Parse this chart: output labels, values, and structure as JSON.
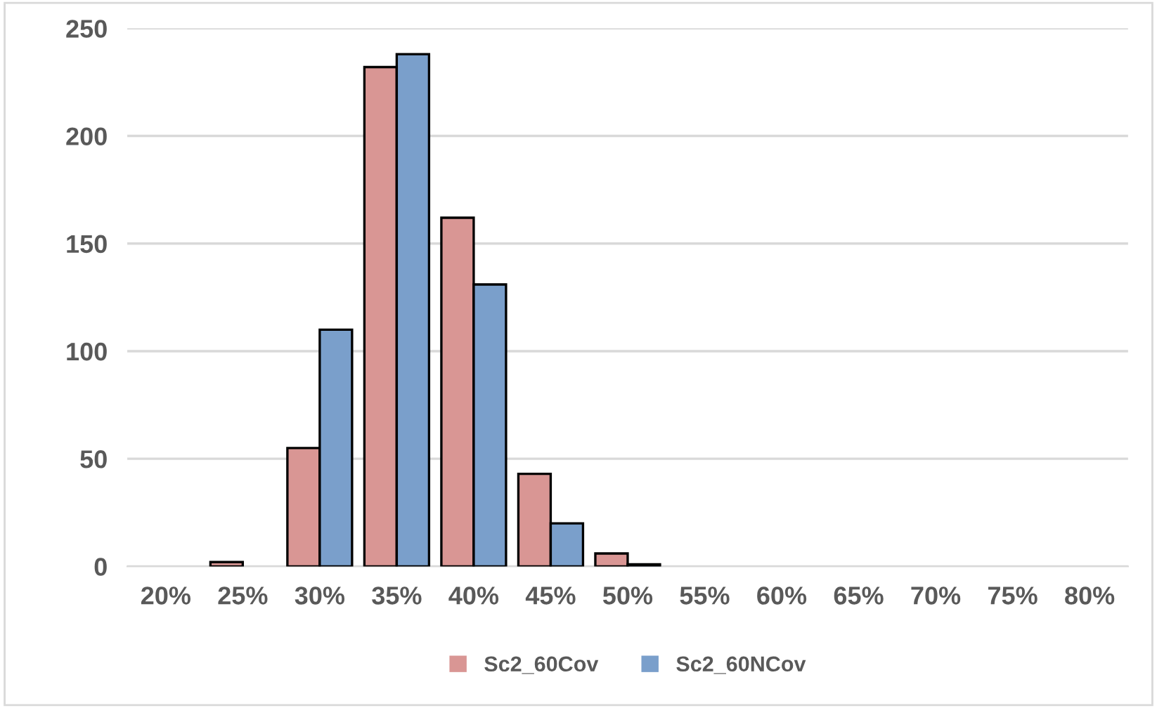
{
  "chart_data": {
    "type": "bar",
    "categories": [
      "20%",
      "25%",
      "30%",
      "35%",
      "40%",
      "45%",
      "50%",
      "55%",
      "60%",
      "65%",
      "70%",
      "75%",
      "80%"
    ],
    "series": [
      {
        "name": "Sc2_60Cov",
        "color": "#d99694",
        "values": [
          0,
          2,
          55,
          232,
          162,
          43,
          6,
          0,
          0,
          0,
          0,
          0,
          0
        ]
      },
      {
        "name": "Sc2_60NCov",
        "color": "#7a9fcb",
        "values": [
          0,
          0,
          110,
          238,
          131,
          20,
          1,
          0,
          0,
          0,
          0,
          0,
          0
        ]
      }
    ],
    "ylim": [
      0,
      250
    ],
    "yticks": [
      0,
      50,
      100,
      150,
      200,
      250
    ],
    "grid": "y",
    "legend": "bottom"
  }
}
